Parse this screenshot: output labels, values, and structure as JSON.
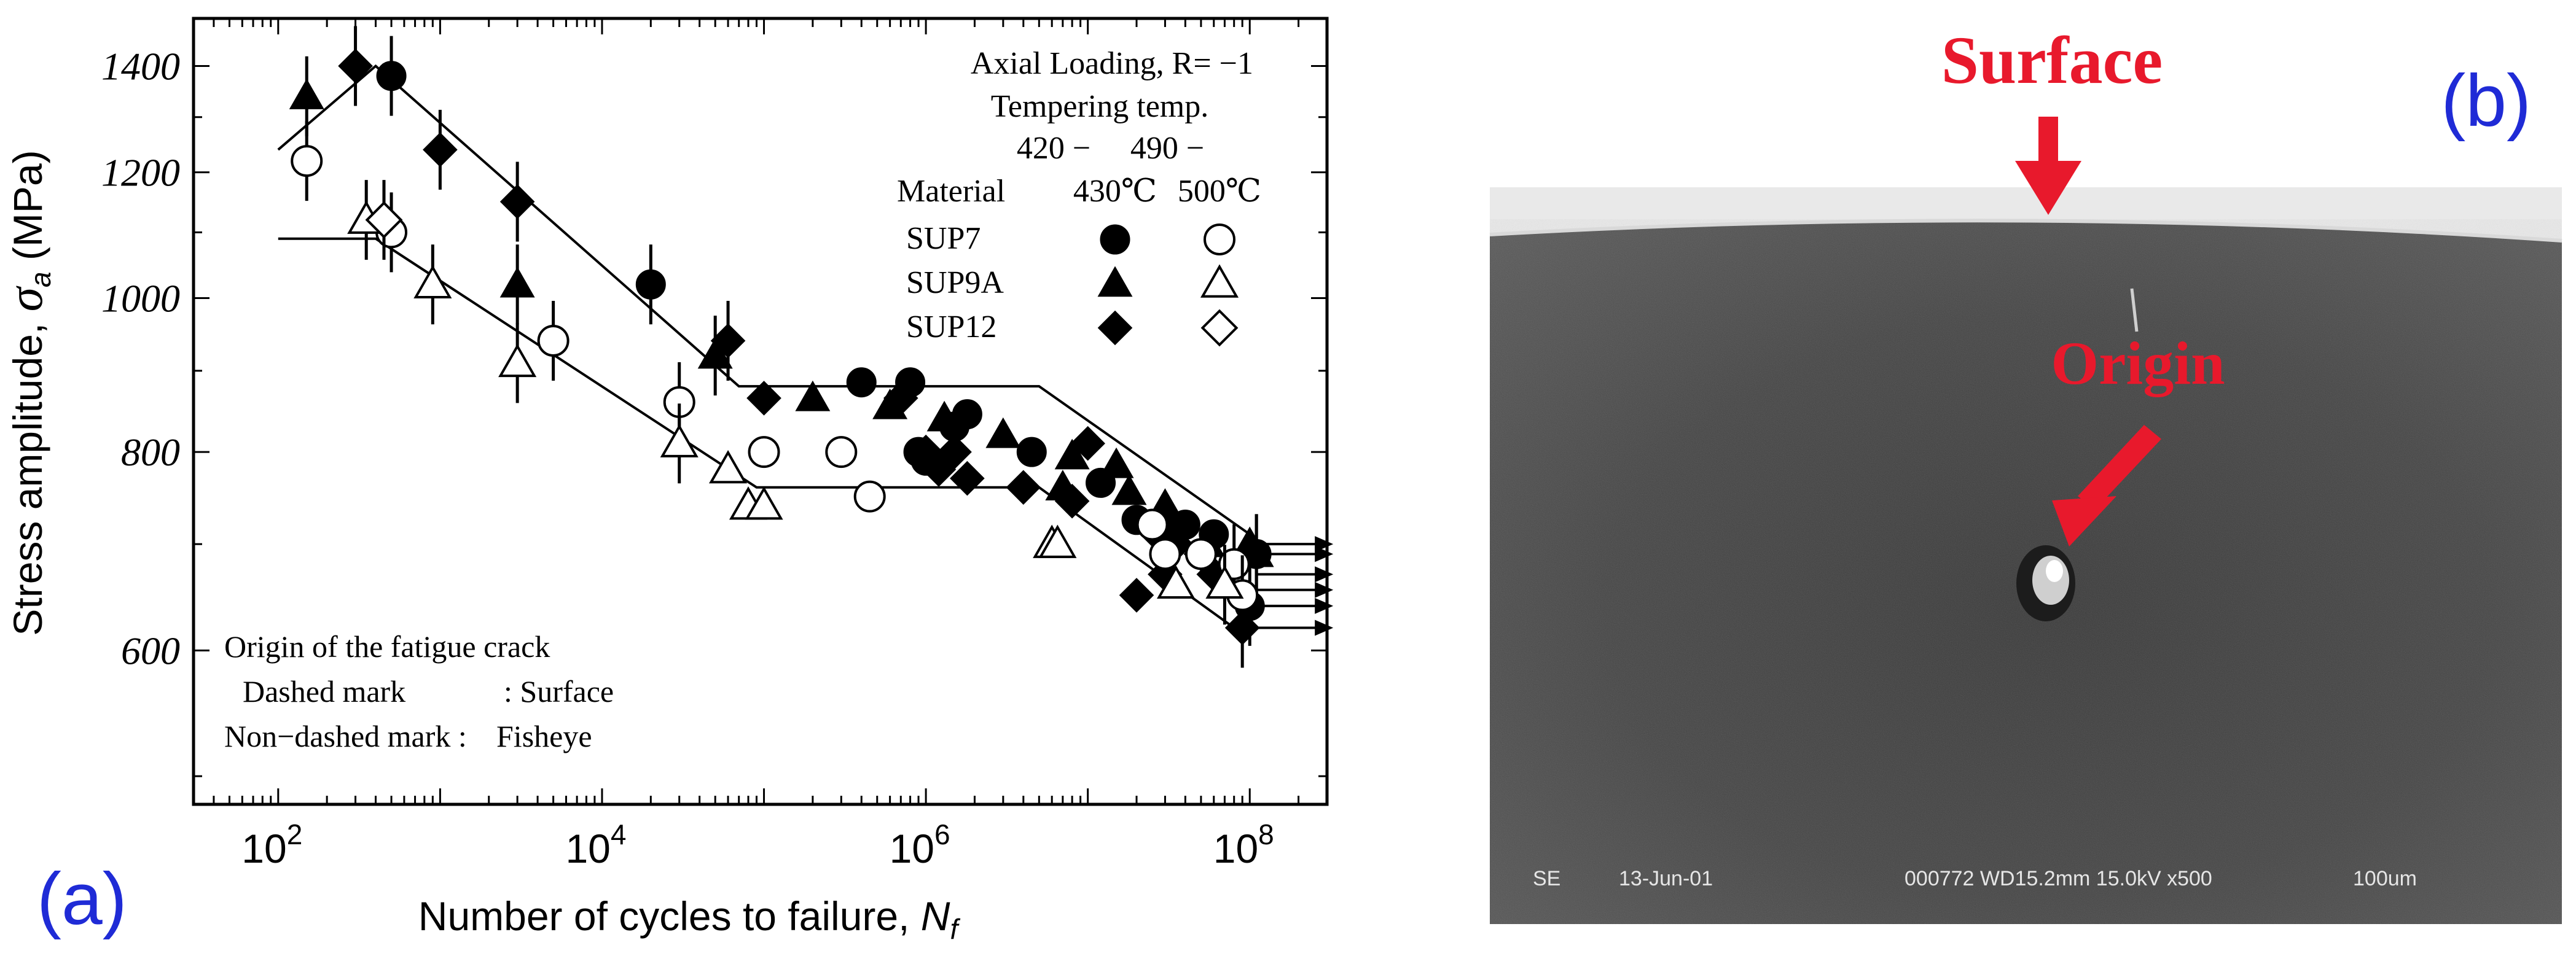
{
  "panels": {
    "a_label": "(a)",
    "b_label": "(b)",
    "a_color": "#1f2bd6",
    "b_color": "#1f2bd6"
  },
  "chart_data": {
    "type": "scatter",
    "title": "",
    "xlabel_text": "Number of cycles to failure, ",
    "xlabel_sym": "N",
    "xlabel_sub": "f",
    "ylabel_text": "Stress amplitude, ",
    "ylabel_sym": "σ",
    "ylabel_sub": "a",
    "ylabel_unit": " (MPa)",
    "xscale": "log",
    "yscale": "log",
    "xlim": [
      30,
      300000000
    ],
    "ylim": [
      480,
      1500
    ],
    "x_ticks": [
      {
        "value": 100,
        "label": "10",
        "exp": "2"
      },
      {
        "value": 10000,
        "label": "10",
        "exp": "4"
      },
      {
        "value": 1000000,
        "label": "10",
        "exp": "6"
      },
      {
        "value": 100000000,
        "label": "10",
        "exp": "8"
      }
    ],
    "y_ticks": [
      {
        "value": 600,
        "label": "600"
      },
      {
        "value": 800,
        "label": "800"
      },
      {
        "value": 1000,
        "label": "1000"
      },
      {
        "value": 1200,
        "label": "1200"
      },
      {
        "value": 1400,
        "label": "1400"
      }
    ],
    "grid": false,
    "legend": {
      "position": "top-right",
      "loading": "Axial Loading, R= −1",
      "tempering_title": "Tempering temp.",
      "temp_range_1": "420 −",
      "temp_range_2": "490 −",
      "material_header": "Material",
      "col1": "430℃",
      "col2": "500℃",
      "rows": [
        {
          "material": "SUP7",
          "marker": "circle"
        },
        {
          "material": "SUP9A",
          "marker": "triangle"
        },
        {
          "material": "SUP12",
          "marker": "diamond"
        }
      ]
    },
    "note": {
      "title": "Origin of the fatigue crack",
      "line1_key": "Dashed mark",
      "line1_val": ": Surface",
      "line2_key": "Non−dashed mark :",
      "line2_val": "Fisheye"
    },
    "band_upper": [
      [
        100,
        1240
      ],
      [
        400,
        1400
      ],
      [
        70000,
        880
      ],
      [
        5000000,
        880
      ],
      [
        100000000,
        710
      ]
    ],
    "band_lower": [
      [
        100,
        1090
      ],
      [
        400,
        1090
      ],
      [
        90000,
        760
      ],
      [
        5000000,
        760
      ],
      [
        100000000,
        610
      ]
    ],
    "series": [
      {
        "name": "SUP7",
        "marker": "circle",
        "fill": "filled",
        "points": [
          [
            500,
            1380,
            "surface"
          ],
          [
            20000,
            1020,
            "surface"
          ],
          [
            400000,
            885
          ],
          [
            800000,
            885
          ],
          [
            900000,
            800
          ],
          [
            1000000,
            790
          ],
          [
            1800000,
            845
          ],
          [
            1500000,
            830
          ],
          [
            4500000,
            800
          ],
          [
            12000000,
            765
          ],
          [
            20000000,
            725
          ],
          [
            30000000,
            720
          ],
          [
            40000000,
            720
          ],
          [
            60000000,
            710
          ],
          [
            80000000,
            680,
            "surface"
          ],
          [
            100000000,
            640,
            "surface"
          ],
          [
            110000000,
            690,
            "surface"
          ]
        ]
      },
      {
        "name": "SUP9A",
        "marker": "triangle",
        "fill": "filled",
        "points": [
          [
            150,
            1340,
            "surface"
          ],
          [
            3000,
            1020,
            "surface"
          ],
          [
            50000,
            920,
            "surface"
          ],
          [
            200000,
            865
          ],
          [
            600000,
            855
          ],
          [
            1300000,
            840
          ],
          [
            3000000,
            820
          ],
          [
            7000000,
            760
          ],
          [
            8000000,
            795
          ],
          [
            15000000,
            785
          ],
          [
            18000000,
            755
          ],
          [
            30000000,
            740
          ],
          [
            55000000,
            700
          ],
          [
            100000000,
            700
          ],
          [
            110000000,
            690,
            "surface"
          ]
        ]
      },
      {
        "name": "SUP12",
        "marker": "diamond",
        "fill": "filled",
        "points": [
          [
            300,
            1400,
            "surface"
          ],
          [
            1000,
            1240,
            "surface"
          ],
          [
            3000,
            1150,
            "surface"
          ],
          [
            60000,
            940,
            "surface"
          ],
          [
            100000,
            865
          ],
          [
            700000,
            865
          ],
          [
            1000000,
            800
          ],
          [
            1200000,
            780
          ],
          [
            1500000,
            800
          ],
          [
            1800000,
            770
          ],
          [
            4000000,
            760
          ],
          [
            8000000,
            745
          ],
          [
            10000000,
            810
          ],
          [
            25000000,
            715
          ],
          [
            35000000,
            700
          ],
          [
            50000000,
            690
          ],
          [
            30000000,
            670
          ],
          [
            20000000,
            650
          ],
          [
            60000000,
            670
          ],
          [
            90000000,
            620,
            "surface"
          ]
        ]
      },
      {
        "name": "SUP7",
        "marker": "circle",
        "fill": "open",
        "points": [
          [
            150,
            1220,
            "surface"
          ],
          [
            500,
            1100,
            "surface"
          ],
          [
            5000,
            940,
            "surface"
          ],
          [
            30000,
            860,
            "surface"
          ],
          [
            100000,
            800
          ],
          [
            300000,
            800
          ],
          [
            450000,
            750
          ],
          [
            25000000,
            720
          ],
          [
            30000000,
            690
          ],
          [
            50000000,
            690
          ],
          [
            80000000,
            680
          ],
          [
            90000000,
            650,
            "surface"
          ]
        ]
      },
      {
        "name": "SUP9A",
        "marker": "triangle",
        "fill": "open",
        "points": [
          [
            350,
            1120,
            "surface"
          ],
          [
            900,
            1020,
            "surface"
          ],
          [
            3000,
            910,
            "surface"
          ],
          [
            30000,
            810,
            "surface"
          ],
          [
            60000,
            780
          ],
          [
            80000,
            740
          ],
          [
            100000,
            740
          ],
          [
            6000000,
            700
          ],
          [
            6500000,
            700
          ],
          [
            35000000,
            660
          ],
          [
            70000000,
            660,
            "surface"
          ]
        ]
      },
      {
        "name": "SUP12",
        "marker": "diamond",
        "fill": "open",
        "points": [
          [
            450,
            1120,
            "surface"
          ]
        ]
      }
    ],
    "runouts": [
      [
        110000000,
        700
      ],
      [
        110000000,
        690
      ],
      [
        110000000,
        670
      ],
      [
        110000000,
        655
      ],
      [
        110000000,
        640
      ],
      [
        110000000,
        620
      ]
    ]
  },
  "photo": {
    "surface_label": "Surface",
    "origin_label": "Origin",
    "arrow_color": "#e8192c",
    "footer_se": "SE",
    "footer_date": "13-Jun-01",
    "footer_params": "000772 WD15.2mm 15.0kV x500",
    "footer_scale": "100um"
  }
}
